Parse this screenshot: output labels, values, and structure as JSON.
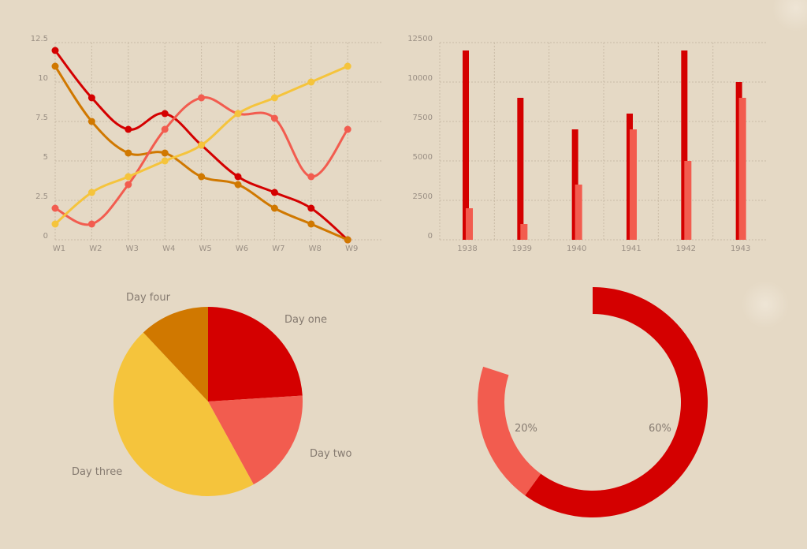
{
  "colors": {
    "background": "#e5d9c5",
    "red": "#d40000",
    "dark_orange": "#d07800",
    "coral": "#f25c4f",
    "yellow": "#f5c43c",
    "grid": "#c9bba6",
    "label": "#9a8f84"
  },
  "chart_data": [
    {
      "id": "line-chart",
      "type": "line",
      "title": "",
      "xlabel": "",
      "ylabel": "",
      "x": [
        "W1",
        "W2",
        "W3",
        "W4",
        "W5",
        "W6",
        "W7",
        "W8",
        "W9"
      ],
      "yticks": [
        "0",
        "2.5",
        "5",
        "7.5",
        "10",
        "12.5"
      ],
      "ylim": [
        0,
        12.5
      ],
      "grid": true,
      "smooth": true,
      "series": [
        {
          "name": "red",
          "color": "#d40000",
          "values": [
            12,
            9,
            7,
            8,
            6,
            4,
            3,
            2,
            0
          ]
        },
        {
          "name": "dark-orange",
          "color": "#d07800",
          "values": [
            11,
            7.5,
            5.5,
            5.5,
            4,
            3.5,
            2,
            1,
            0
          ]
        },
        {
          "name": "coral",
          "color": "#f25c4f",
          "values": [
            2,
            1,
            3.5,
            7,
            9,
            8,
            7.7,
            4,
            7
          ]
        },
        {
          "name": "yellow",
          "color": "#f5c43c",
          "values": [
            1,
            3,
            4,
            5,
            6,
            8,
            9,
            10,
            11
          ]
        }
      ]
    },
    {
      "id": "bar-chart",
      "type": "bar",
      "title": "",
      "xlabel": "",
      "ylabel": "",
      "categories": [
        "1938",
        "1939",
        "1940",
        "1941",
        "1942",
        "1943"
      ],
      "yticks": [
        "0",
        "2500",
        "5000",
        "7500",
        "10000",
        "12500"
      ],
      "ylim": [
        0,
        12500
      ],
      "grid": true,
      "series": [
        {
          "name": "series-1",
          "color": "#d40000",
          "values": [
            12000,
            9000,
            7000,
            8000,
            12000,
            10000
          ]
        },
        {
          "name": "series-2",
          "color": "#f25c4f",
          "values": [
            2000,
            1000,
            3500,
            7000,
            5000,
            9000
          ]
        }
      ]
    },
    {
      "id": "pie-chart",
      "type": "pie",
      "title": "",
      "categories": [
        "Day one",
        "Day two",
        "Day three",
        "Day four"
      ],
      "values": [
        24,
        18,
        46,
        12
      ],
      "colors": [
        "#d40000",
        "#f25c4f",
        "#f5c43c",
        "#d07800"
      ],
      "start_angle_deg": 0,
      "direction": "clockwise"
    },
    {
      "id": "donut-chart",
      "type": "pie",
      "subtype": "donut",
      "title": "",
      "categories": [
        "60%",
        "20%"
      ],
      "values": [
        60,
        20
      ],
      "colors": [
        "#d40000",
        "#f25c4f"
      ],
      "labels": [
        "60%",
        "20%"
      ],
      "start_angle_deg": 0,
      "direction": "clockwise"
    }
  ]
}
